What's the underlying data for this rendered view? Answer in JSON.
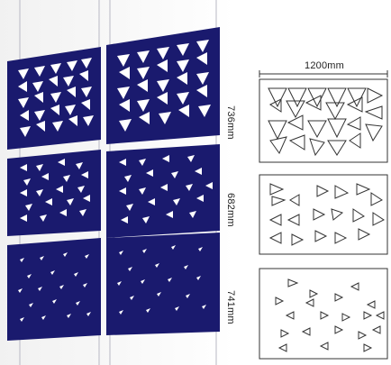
{
  "dimensions": {
    "width": "1200mm",
    "heights": [
      "736mm",
      "682mm",
      "741mm"
    ]
  },
  "colors": {
    "panel": "#1a1a6e",
    "panel_edge": "#10104f",
    "outline": "#333333"
  }
}
